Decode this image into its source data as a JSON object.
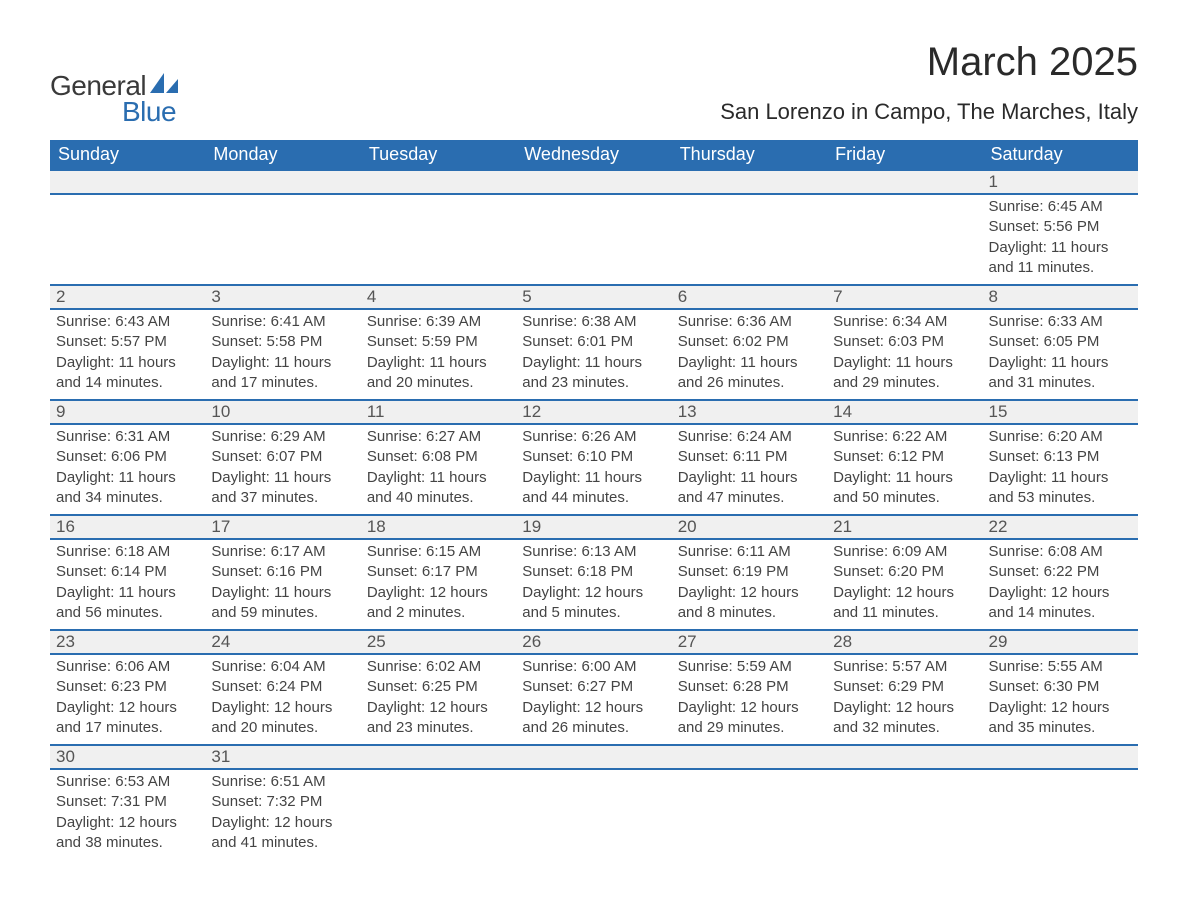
{
  "logo": {
    "text1": "General",
    "text2": "Blue",
    "shape_color": "#2a6db0"
  },
  "title": "March 2025",
  "location": "San Lorenzo in Campo, The Marches, Italy",
  "weekdays": [
    "Sunday",
    "Monday",
    "Tuesday",
    "Wednesday",
    "Thursday",
    "Friday",
    "Saturday"
  ],
  "colors": {
    "header_bg": "#2a6db0",
    "header_text": "#ffffff",
    "daynum_bg": "#f0f0f0",
    "border": "#2a6db0",
    "text": "#3a3a3a"
  },
  "fonts": {
    "month_title_size": 40,
    "location_size": 22,
    "weekday_size": 18,
    "daynum_size": 17,
    "detail_size": 15
  },
  "weeks": [
    [
      null,
      null,
      null,
      null,
      null,
      null,
      {
        "n": "1",
        "sunrise": "Sunrise: 6:45 AM",
        "sunset": "Sunset: 5:56 PM",
        "d1": "Daylight: 11 hours",
        "d2": "and 11 minutes."
      }
    ],
    [
      {
        "n": "2",
        "sunrise": "Sunrise: 6:43 AM",
        "sunset": "Sunset: 5:57 PM",
        "d1": "Daylight: 11 hours",
        "d2": "and 14 minutes."
      },
      {
        "n": "3",
        "sunrise": "Sunrise: 6:41 AM",
        "sunset": "Sunset: 5:58 PM",
        "d1": "Daylight: 11 hours",
        "d2": "and 17 minutes."
      },
      {
        "n": "4",
        "sunrise": "Sunrise: 6:39 AM",
        "sunset": "Sunset: 5:59 PM",
        "d1": "Daylight: 11 hours",
        "d2": "and 20 minutes."
      },
      {
        "n": "5",
        "sunrise": "Sunrise: 6:38 AM",
        "sunset": "Sunset: 6:01 PM",
        "d1": "Daylight: 11 hours",
        "d2": "and 23 minutes."
      },
      {
        "n": "6",
        "sunrise": "Sunrise: 6:36 AM",
        "sunset": "Sunset: 6:02 PM",
        "d1": "Daylight: 11 hours",
        "d2": "and 26 minutes."
      },
      {
        "n": "7",
        "sunrise": "Sunrise: 6:34 AM",
        "sunset": "Sunset: 6:03 PM",
        "d1": "Daylight: 11 hours",
        "d2": "and 29 minutes."
      },
      {
        "n": "8",
        "sunrise": "Sunrise: 6:33 AM",
        "sunset": "Sunset: 6:05 PM",
        "d1": "Daylight: 11 hours",
        "d2": "and 31 minutes."
      }
    ],
    [
      {
        "n": "9",
        "sunrise": "Sunrise: 6:31 AM",
        "sunset": "Sunset: 6:06 PM",
        "d1": "Daylight: 11 hours",
        "d2": "and 34 minutes."
      },
      {
        "n": "10",
        "sunrise": "Sunrise: 6:29 AM",
        "sunset": "Sunset: 6:07 PM",
        "d1": "Daylight: 11 hours",
        "d2": "and 37 minutes."
      },
      {
        "n": "11",
        "sunrise": "Sunrise: 6:27 AM",
        "sunset": "Sunset: 6:08 PM",
        "d1": "Daylight: 11 hours",
        "d2": "and 40 minutes."
      },
      {
        "n": "12",
        "sunrise": "Sunrise: 6:26 AM",
        "sunset": "Sunset: 6:10 PM",
        "d1": "Daylight: 11 hours",
        "d2": "and 44 minutes."
      },
      {
        "n": "13",
        "sunrise": "Sunrise: 6:24 AM",
        "sunset": "Sunset: 6:11 PM",
        "d1": "Daylight: 11 hours",
        "d2": "and 47 minutes."
      },
      {
        "n": "14",
        "sunrise": "Sunrise: 6:22 AM",
        "sunset": "Sunset: 6:12 PM",
        "d1": "Daylight: 11 hours",
        "d2": "and 50 minutes."
      },
      {
        "n": "15",
        "sunrise": "Sunrise: 6:20 AM",
        "sunset": "Sunset: 6:13 PM",
        "d1": "Daylight: 11 hours",
        "d2": "and 53 minutes."
      }
    ],
    [
      {
        "n": "16",
        "sunrise": "Sunrise: 6:18 AM",
        "sunset": "Sunset: 6:14 PM",
        "d1": "Daylight: 11 hours",
        "d2": "and 56 minutes."
      },
      {
        "n": "17",
        "sunrise": "Sunrise: 6:17 AM",
        "sunset": "Sunset: 6:16 PM",
        "d1": "Daylight: 11 hours",
        "d2": "and 59 minutes."
      },
      {
        "n": "18",
        "sunrise": "Sunrise: 6:15 AM",
        "sunset": "Sunset: 6:17 PM",
        "d1": "Daylight: 12 hours",
        "d2": "and 2 minutes."
      },
      {
        "n": "19",
        "sunrise": "Sunrise: 6:13 AM",
        "sunset": "Sunset: 6:18 PM",
        "d1": "Daylight: 12 hours",
        "d2": "and 5 minutes."
      },
      {
        "n": "20",
        "sunrise": "Sunrise: 6:11 AM",
        "sunset": "Sunset: 6:19 PM",
        "d1": "Daylight: 12 hours",
        "d2": "and 8 minutes."
      },
      {
        "n": "21",
        "sunrise": "Sunrise: 6:09 AM",
        "sunset": "Sunset: 6:20 PM",
        "d1": "Daylight: 12 hours",
        "d2": "and 11 minutes."
      },
      {
        "n": "22",
        "sunrise": "Sunrise: 6:08 AM",
        "sunset": "Sunset: 6:22 PM",
        "d1": "Daylight: 12 hours",
        "d2": "and 14 minutes."
      }
    ],
    [
      {
        "n": "23",
        "sunrise": "Sunrise: 6:06 AM",
        "sunset": "Sunset: 6:23 PM",
        "d1": "Daylight: 12 hours",
        "d2": "and 17 minutes."
      },
      {
        "n": "24",
        "sunrise": "Sunrise: 6:04 AM",
        "sunset": "Sunset: 6:24 PM",
        "d1": "Daylight: 12 hours",
        "d2": "and 20 minutes."
      },
      {
        "n": "25",
        "sunrise": "Sunrise: 6:02 AM",
        "sunset": "Sunset: 6:25 PM",
        "d1": "Daylight: 12 hours",
        "d2": "and 23 minutes."
      },
      {
        "n": "26",
        "sunrise": "Sunrise: 6:00 AM",
        "sunset": "Sunset: 6:27 PM",
        "d1": "Daylight: 12 hours",
        "d2": "and 26 minutes."
      },
      {
        "n": "27",
        "sunrise": "Sunrise: 5:59 AM",
        "sunset": "Sunset: 6:28 PM",
        "d1": "Daylight: 12 hours",
        "d2": "and 29 minutes."
      },
      {
        "n": "28",
        "sunrise": "Sunrise: 5:57 AM",
        "sunset": "Sunset: 6:29 PM",
        "d1": "Daylight: 12 hours",
        "d2": "and 32 minutes."
      },
      {
        "n": "29",
        "sunrise": "Sunrise: 5:55 AM",
        "sunset": "Sunset: 6:30 PM",
        "d1": "Daylight: 12 hours",
        "d2": "and 35 minutes."
      }
    ],
    [
      {
        "n": "30",
        "sunrise": "Sunrise: 6:53 AM",
        "sunset": "Sunset: 7:31 PM",
        "d1": "Daylight: 12 hours",
        "d2": "and 38 minutes."
      },
      {
        "n": "31",
        "sunrise": "Sunrise: 6:51 AM",
        "sunset": "Sunset: 7:32 PM",
        "d1": "Daylight: 12 hours",
        "d2": "and 41 minutes."
      },
      null,
      null,
      null,
      null,
      null
    ]
  ]
}
